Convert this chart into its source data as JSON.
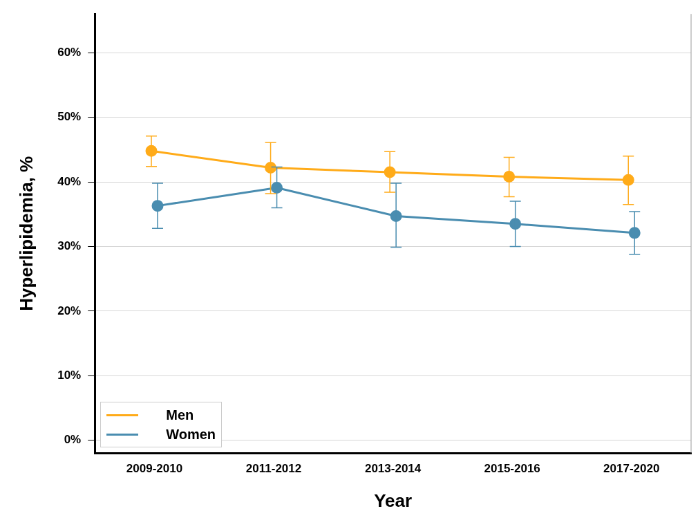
{
  "chart_data": {
    "type": "line",
    "xlabel": "Year",
    "ylabel": "Hyperlipidemia, %",
    "categories": [
      "2009-2010",
      "2011-2012",
      "2013-2014",
      "2015-2016",
      "2017-2020"
    ],
    "series": [
      {
        "name": "Men",
        "color": "#ffab19",
        "values": [
          44.8,
          42.2,
          41.5,
          40.8,
          40.3
        ],
        "errors": [
          [
            42.4,
            47.1
          ],
          [
            38.2,
            46.1
          ],
          [
            38.4,
            44.7
          ],
          [
            37.7,
            43.8
          ],
          [
            36.5,
            44.0
          ]
        ]
      },
      {
        "name": "Women",
        "color": "#4a8db0",
        "values": [
          36.3,
          39.1,
          34.7,
          33.5,
          32.1
        ],
        "errors": [
          [
            32.8,
            39.8
          ],
          [
            36.0,
            42.3
          ],
          [
            29.9,
            39.8
          ],
          [
            30.0,
            37.0
          ],
          [
            28.8,
            35.4
          ]
        ]
      }
    ],
    "ylim": [
      -2,
      66
    ],
    "yticks": [
      {
        "value": 0,
        "label": "0%"
      },
      {
        "value": 10,
        "label": "10%"
      },
      {
        "value": 20,
        "label": "20%"
      },
      {
        "value": 30,
        "label": "30%"
      },
      {
        "value": 40,
        "label": "40%"
      },
      {
        "value": 50,
        "label": "50%"
      },
      {
        "value": 60,
        "label": "60%"
      }
    ],
    "grid": "y",
    "legend": "bottom left",
    "marker": "circle",
    "line_style": "solid"
  }
}
